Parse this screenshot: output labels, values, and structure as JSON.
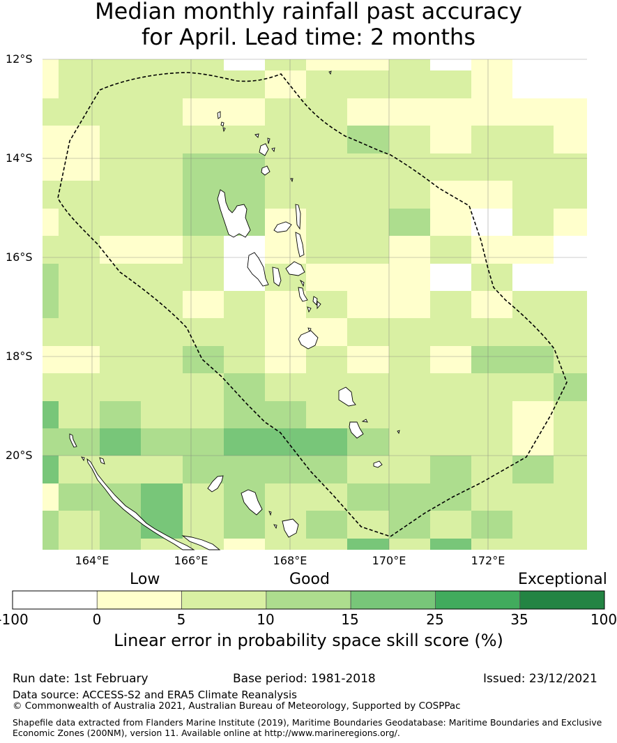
{
  "title_line1": "Median monthly rainfall past accuracy",
  "title_line2": "for April. Lead time: 2 months",
  "map": {
    "lat_labels": [
      "12°S",
      "14°S",
      "16°S",
      "18°S",
      "20°S"
    ],
    "lon_labels": [
      "164°E",
      "166°E",
      "168°E",
      "170°E",
      "172°E"
    ]
  },
  "colorbar": {
    "category_labels": [
      "Low",
      "Good",
      "Exceptional"
    ],
    "ticks": [
      "-100",
      "0",
      "5",
      "10",
      "15",
      "25",
      "35",
      "100"
    ],
    "colors": [
      "#ffffff",
      "#ffffcc",
      "#d9f0a3",
      "#addd8e",
      "#78c679",
      "#41ab5d",
      "#238443"
    ],
    "title": "Linear error in probability space skill score (%)"
  },
  "footer": {
    "run_date": "Run date: 1st February",
    "base_period": "Base period: 1981-2018",
    "issued": "Issued: 23/12/2021",
    "data_source": "Data source: ACCESS-S2 and ERA5 Climate Reanalysis",
    "copyright": "© Commonwealth of Australia 2021, Australian Bureau of Meteorology, Supported by COSPPac",
    "shapefile_line1": "Shapefile data extracted from Flanders Marine Institute (2019), Maritime Boundaries Geodatabase: Maritime Boundaries and Exclusive",
    "shapefile_line2": "Economic Zones (200NM), version 11. Available online at http://www.marineregions.org/."
  }
}
